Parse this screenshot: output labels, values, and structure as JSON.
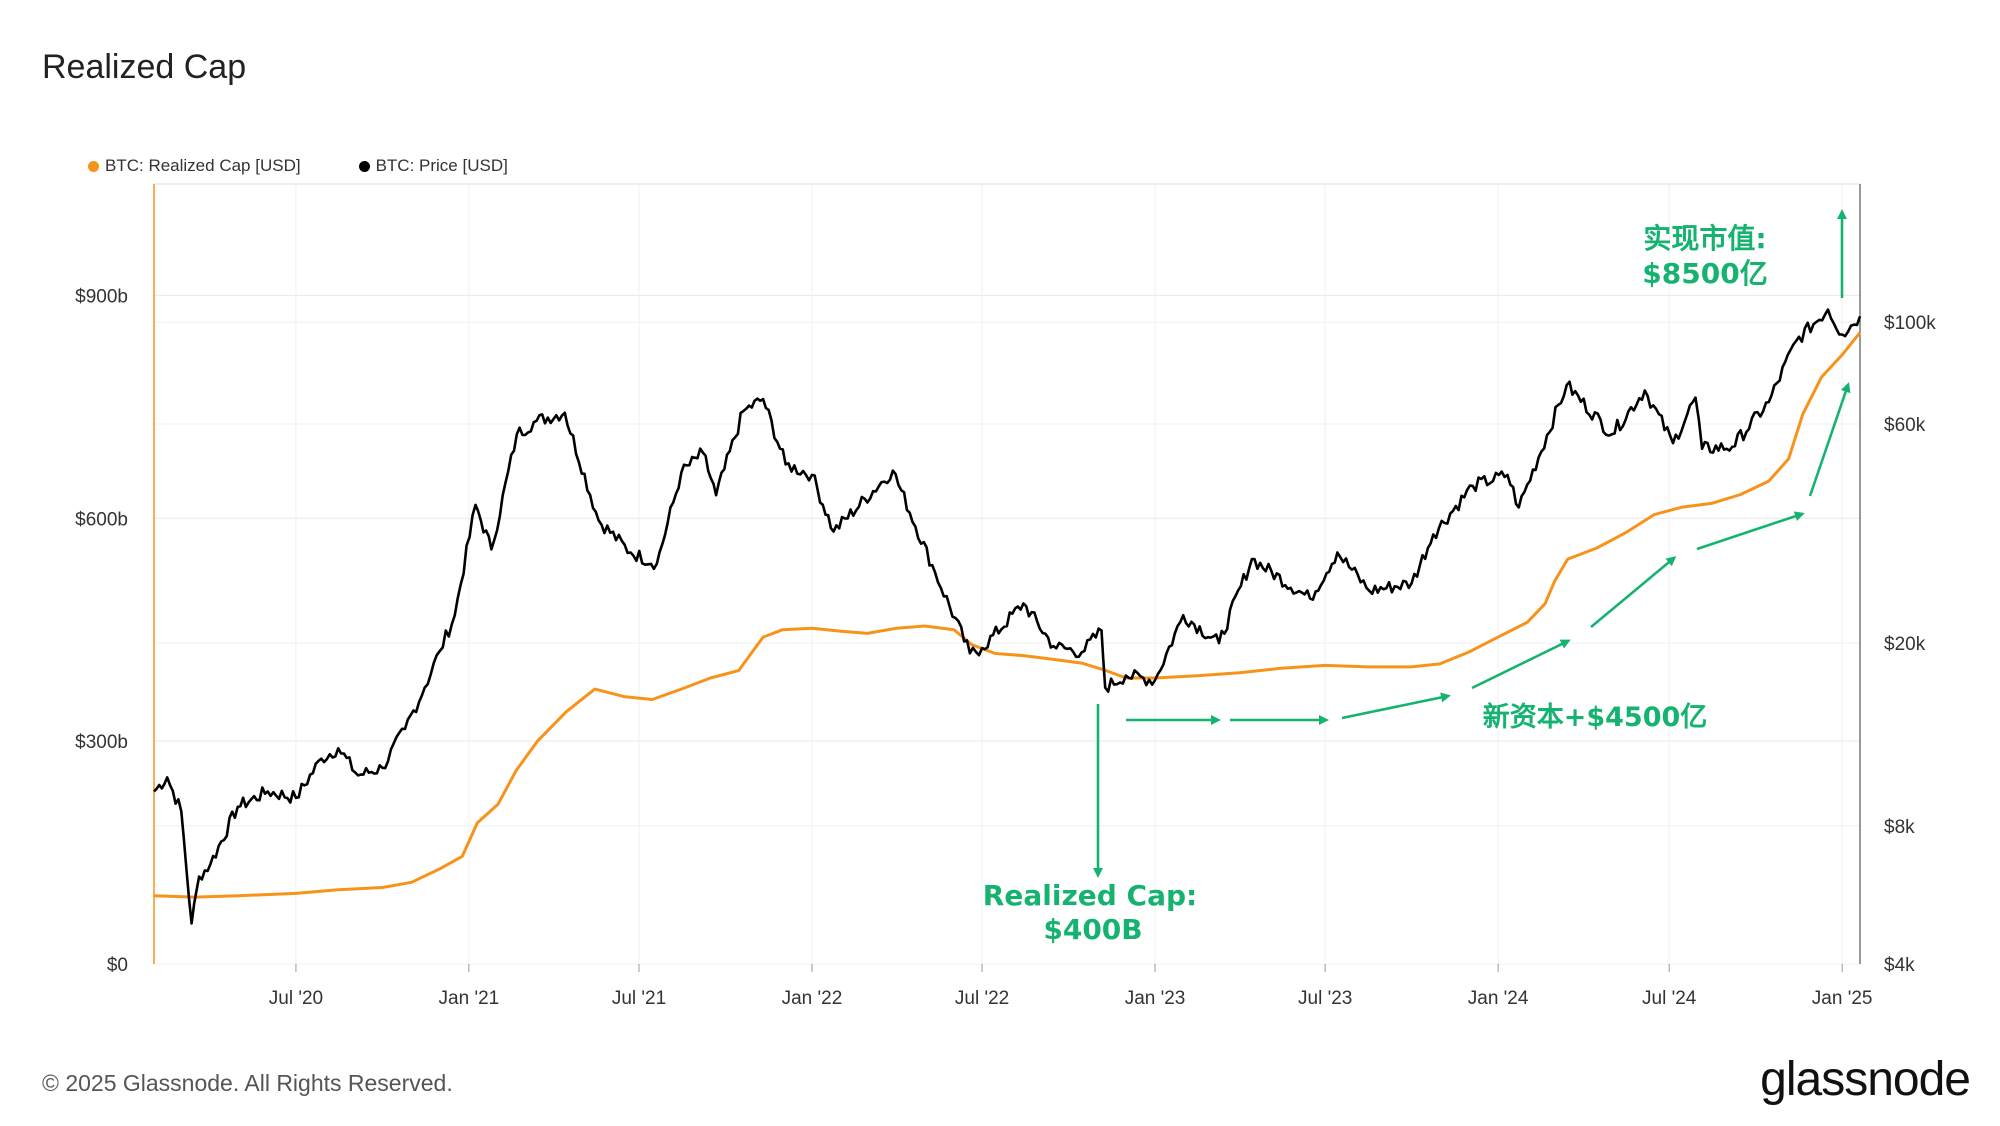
{
  "title": "Realized Cap",
  "legend": [
    {
      "label": "BTC: Realized Cap [USD]",
      "color": "#f7931a"
    },
    {
      "label": "BTC: Price [USD]",
      "color": "#000000"
    }
  ],
  "copyright": "© 2025 Glassnode. All Rights Reserved.",
  "brand": "glassnode",
  "annotation_color": "#16b370",
  "annotations": {
    "current_cap_line1": "实现市值:",
    "current_cap_line2": "$8500亿",
    "low_cap_line1": "Realized Cap:",
    "low_cap_line2": "$400B",
    "new_capital": "新资本+$4500亿"
  },
  "chart_data": {
    "type": "line",
    "title": "Realized Cap",
    "x_tick_labels": [
      "Jul '20",
      "Jan '21",
      "Jul '21",
      "Jan '22",
      "Jul '22",
      "Jan '23",
      "Jul '23",
      "Jan '24",
      "Jul '24",
      "Jan '25"
    ],
    "x_tick_dates": [
      "2020-07-01",
      "2021-01-01",
      "2021-07-01",
      "2022-01-01",
      "2022-07-01",
      "2023-01-01",
      "2023-07-01",
      "2024-01-01",
      "2024-07-01",
      "2025-01-01"
    ],
    "x_range": [
      "2020-02-01",
      "2025-01-20"
    ],
    "y_left": {
      "tick_labels": [
        "$0",
        "$300b",
        "$600b",
        "$900b"
      ],
      "tick_values": [
        0,
        300,
        600,
        900
      ],
      "range": [
        0,
        1050
      ],
      "unit": "billion USD"
    },
    "y_right": {
      "scale": "log",
      "tick_labels": [
        "$4k",
        "$8k",
        "$20k",
        "$60k",
        "$100k"
      ],
      "tick_values": [
        4000,
        8000,
        20000,
        60000,
        100000
      ],
      "range": [
        4000,
        200000
      ]
    },
    "grid": true,
    "legend_position": "top-left",
    "series": [
      {
        "name": "BTC: Realized Cap [USD]",
        "axis": "left",
        "color": "#f7931a",
        "points": [
          [
            "2020-02-01",
            92
          ],
          [
            "2020-03-15",
            90
          ],
          [
            "2020-05-01",
            92
          ],
          [
            "2020-07-01",
            95
          ],
          [
            "2020-08-15",
            100
          ],
          [
            "2020-10-01",
            103
          ],
          [
            "2020-11-01",
            110
          ],
          [
            "2020-12-01",
            128
          ],
          [
            "2020-12-25",
            145
          ],
          [
            "2021-01-10",
            190
          ],
          [
            "2021-02-01",
            215
          ],
          [
            "2021-02-20",
            260
          ],
          [
            "2021-03-15",
            300
          ],
          [
            "2021-04-15",
            340
          ],
          [
            "2021-05-15",
            370
          ],
          [
            "2021-06-15",
            360
          ],
          [
            "2021-07-15",
            356
          ],
          [
            "2021-08-15",
            370
          ],
          [
            "2021-09-15",
            385
          ],
          [
            "2021-10-15",
            395
          ],
          [
            "2021-11-10",
            440
          ],
          [
            "2021-12-01",
            450
          ],
          [
            "2022-01-01",
            452
          ],
          [
            "2022-02-01",
            448
          ],
          [
            "2022-03-01",
            445
          ],
          [
            "2022-04-01",
            452
          ],
          [
            "2022-05-01",
            455
          ],
          [
            "2022-06-01",
            450
          ],
          [
            "2022-06-20",
            430
          ],
          [
            "2022-07-15",
            418
          ],
          [
            "2022-08-15",
            415
          ],
          [
            "2022-09-15",
            410
          ],
          [
            "2022-10-15",
            405
          ],
          [
            "2022-11-10",
            395
          ],
          [
            "2022-12-01",
            385
          ],
          [
            "2023-01-01",
            385
          ],
          [
            "2023-02-15",
            388
          ],
          [
            "2023-04-01",
            392
          ],
          [
            "2023-05-15",
            398
          ],
          [
            "2023-07-01",
            402
          ],
          [
            "2023-08-15",
            400
          ],
          [
            "2023-10-01",
            400
          ],
          [
            "2023-10-31",
            404
          ],
          [
            "2023-12-01",
            420
          ],
          [
            "2024-01-01",
            440
          ],
          [
            "2024-02-01",
            460
          ],
          [
            "2024-02-20",
            485
          ],
          [
            "2024-03-01",
            515
          ],
          [
            "2024-03-15",
            545
          ],
          [
            "2024-04-15",
            560
          ],
          [
            "2024-05-15",
            580
          ],
          [
            "2024-06-15",
            605
          ],
          [
            "2024-07-15",
            615
          ],
          [
            "2024-08-15",
            620
          ],
          [
            "2024-09-15",
            632
          ],
          [
            "2024-10-15",
            650
          ],
          [
            "2024-11-05",
            680
          ],
          [
            "2024-11-20",
            740
          ],
          [
            "2024-12-10",
            790
          ],
          [
            "2025-01-01",
            820
          ],
          [
            "2025-01-20",
            850
          ]
        ]
      },
      {
        "name": "BTC: Price [USD]",
        "axis": "right",
        "color": "#000000",
        "points": [
          [
            "2020-02-01",
            9500
          ],
          [
            "2020-02-15",
            10200
          ],
          [
            "2020-03-01",
            8600
          ],
          [
            "2020-03-12",
            4900
          ],
          [
            "2020-03-20",
            6200
          ],
          [
            "2020-04-01",
            6600
          ],
          [
            "2020-04-30",
            8800
          ],
          [
            "2020-06-01",
            9500
          ],
          [
            "2020-07-01",
            9200
          ],
          [
            "2020-07-28",
            11200
          ],
          [
            "2020-08-15",
            11800
          ],
          [
            "2020-09-05",
            10300
          ],
          [
            "2020-10-01",
            10700
          ],
          [
            "2020-10-25",
            13000
          ],
          [
            "2020-11-15",
            16000
          ],
          [
            "2020-12-01",
            19200
          ],
          [
            "2020-12-17",
            23000
          ],
          [
            "2021-01-08",
            40000
          ],
          [
            "2021-01-25",
            32000
          ],
          [
            "2021-02-21",
            57000
          ],
          [
            "2021-03-14",
            61000
          ],
          [
            "2021-04-13",
            63500
          ],
          [
            "2021-05-19",
            37000
          ],
          [
            "2021-06-22",
            31500
          ],
          [
            "2021-07-20",
            29800
          ],
          [
            "2021-08-15",
            47000
          ],
          [
            "2021-09-07",
            52000
          ],
          [
            "2021-09-21",
            42000
          ],
          [
            "2021-10-20",
            64000
          ],
          [
            "2021-11-10",
            68000
          ],
          [
            "2021-12-04",
            49000
          ],
          [
            "2022-01-01",
            46500
          ],
          [
            "2022-01-24",
            35000
          ],
          [
            "2022-03-28",
            47500
          ],
          [
            "2022-05-12",
            28500
          ],
          [
            "2022-06-18",
            19000
          ],
          [
            "2022-07-01",
            19500
          ],
          [
            "2022-08-14",
            24400
          ],
          [
            "2022-09-15",
            19700
          ],
          [
            "2022-10-15",
            19100
          ],
          [
            "2022-11-05",
            21300
          ],
          [
            "2022-11-09",
            16000
          ],
          [
            "2022-12-01",
            17000
          ],
          [
            "2023-01-01",
            16600
          ],
          [
            "2023-01-31",
            23000
          ],
          [
            "2023-03-10",
            20000
          ],
          [
            "2023-04-14",
            30500
          ],
          [
            "2023-06-15",
            25000
          ],
          [
            "2023-07-14",
            31500
          ],
          [
            "2023-08-17",
            26000
          ],
          [
            "2023-10-01",
            27000
          ],
          [
            "2023-10-24",
            34500
          ],
          [
            "2023-12-05",
            44000
          ],
          [
            "2024-01-11",
            46500
          ],
          [
            "2024-01-23",
            39500
          ],
          [
            "2024-03-14",
            73000
          ],
          [
            "2024-05-01",
            57000
          ],
          [
            "2024-06-05",
            71000
          ],
          [
            "2024-07-05",
            54500
          ],
          [
            "2024-07-29",
            68500
          ],
          [
            "2024-08-05",
            53000
          ],
          [
            "2024-09-06",
            53500
          ],
          [
            "2024-10-15",
            67000
          ],
          [
            "2024-11-13",
            91000
          ],
          [
            "2024-12-17",
            106500
          ],
          [
            "2025-01-01",
            94000
          ],
          [
            "2025-01-20",
            103000
          ]
        ]
      }
    ]
  }
}
